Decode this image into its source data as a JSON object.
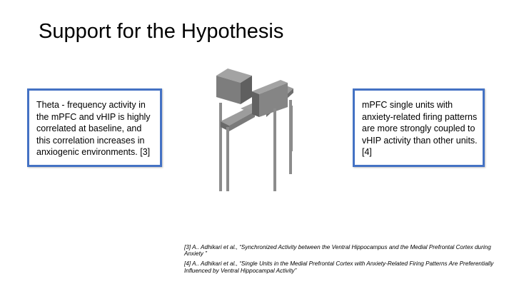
{
  "slide": {
    "title": "Support for the Hypothesis",
    "left_box": {
      "text": "Theta - frequency activity in the mPFC and vHIP is highly correlated at baseline, and this correlation increases in anxiogenic environments. [3]"
    },
    "right_box": {
      "text": "mPFC single units with anxiety-related firing patterns are more strongly coupled to vHIP activity than other units. [4]"
    },
    "image": {
      "icon": "elevated-plus-maze-icon"
    },
    "references": [
      "[3] A.. Adhikari  et al., “Synchronized Activity between the Ventral Hippocampus and the Medial Prefrontal Cortex during Anxiety ”",
      "[4] A.. Adhikari  et al., “Single Units in the Medial Prefrontal Cortex with Anxiety-Related Firing Patterns Are Preferentially Influenced by Ventral Hippocampal Activity”"
    ],
    "colors": {
      "box_border": "#4472c4",
      "maze_light": "#9a9a9a",
      "maze_mid": "#7a7a7a",
      "maze_dark": "#5a5a5a"
    }
  }
}
